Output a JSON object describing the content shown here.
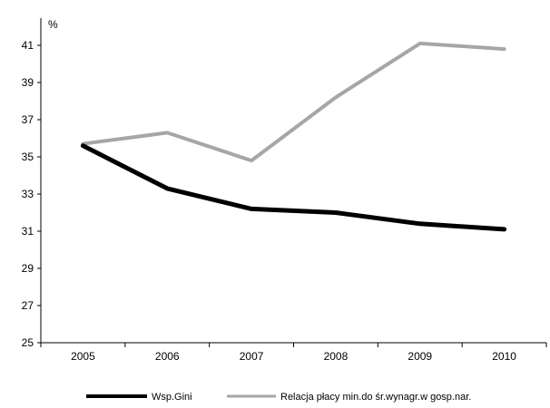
{
  "chart_data": {
    "type": "line",
    "unit_label": "%",
    "x": [
      "2005",
      "2006",
      "2007",
      "2008",
      "2009",
      "2010"
    ],
    "ylim": [
      25,
      42
    ],
    "yticks": [
      25,
      27,
      29,
      31,
      33,
      35,
      37,
      39,
      41
    ],
    "grid": false,
    "legend_position": "bottom",
    "series": [
      {
        "name": "Wsp.Gini",
        "color": "#000000",
        "values": [
          35.6,
          33.3,
          32.2,
          32.0,
          31.4,
          31.1
        ]
      },
      {
        "name": "Relacja płacy min.do śr.wynagr.w gosp.nar.",
        "color": "#a6a6a6",
        "values": [
          35.7,
          36.3,
          34.8,
          38.2,
          41.1,
          40.8
        ]
      }
    ]
  }
}
